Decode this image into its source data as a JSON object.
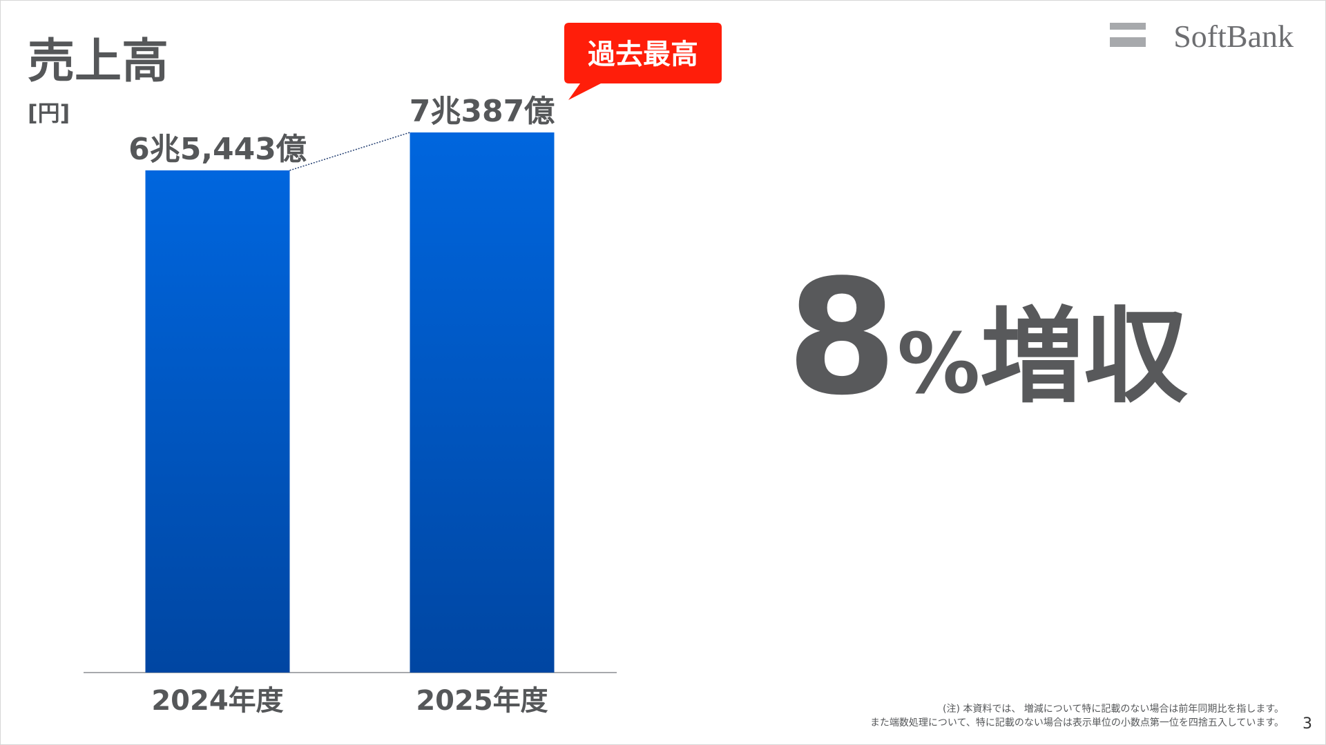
{
  "chart_data": {
    "type": "bar",
    "title": "売上高",
    "unit": "[円]",
    "categories": [
      "2024年度",
      "2025年度"
    ],
    "values": [
      6544300000000,
      7038700000000
    ],
    "value_labels": [
      "6兆5,443億",
      "7兆387億"
    ],
    "color_top": "#0066de",
    "color_bottom": "#0046a2",
    "badge": "過去最高",
    "headline": {
      "number": "8",
      "percent": "%",
      "text": "増収"
    }
  },
  "logo": "SoftBank",
  "footnotes": [
    "(注) 本資料では、 増減について特に記載のない場合は前年同期比を指します。",
    "また端数処理について、特に記載のない場合は表示単位の小数点第一位を四捨五入しています。"
  ],
  "page_number": "3"
}
